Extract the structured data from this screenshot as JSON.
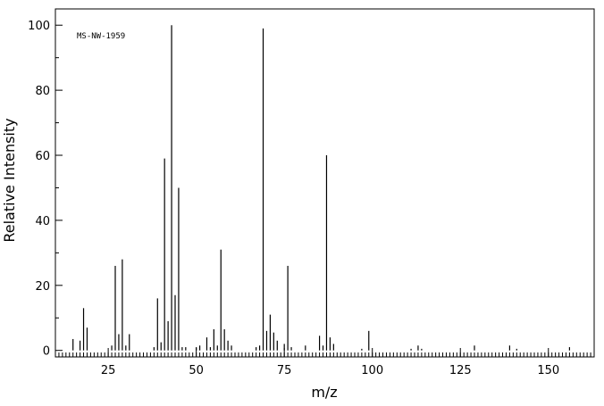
{
  "chart_data": {
    "type": "stem",
    "annotation": "MS-NW-1959",
    "xlabel": "m/z",
    "ylabel": "Relative Intensity",
    "x": [
      15,
      17,
      18,
      19,
      26,
      27,
      28,
      29,
      30,
      31,
      38,
      39,
      40,
      41,
      42,
      43,
      44,
      45,
      46,
      47,
      50,
      51,
      53,
      54,
      55,
      56,
      57,
      58,
      59,
      60,
      67,
      68,
      69,
      70,
      71,
      72,
      73,
      75,
      76,
      77,
      81,
      85,
      86,
      87,
      88,
      89,
      97,
      99,
      111,
      113,
      114,
      129,
      139,
      141,
      156
    ],
    "values": [
      3.5,
      3,
      13,
      7,
      1.5,
      26,
      5,
      28,
      1.5,
      5,
      1,
      16,
      2.5,
      59,
      9,
      100,
      17,
      50,
      1,
      1,
      1,
      1.5,
      4,
      1,
      6.5,
      1.5,
      31,
      6.5,
      3,
      1.5,
      1,
      1.5,
      99,
      6,
      11,
      5.5,
      3,
      2,
      26,
      1,
      1.5,
      4.5,
      1.5,
      60,
      4,
      2,
      0.5,
      6,
      0.5,
      1.5,
      0.5,
      1.5,
      1.5,
      0.5,
      1
    ],
    "color": "#000000",
    "xlim": [
      10,
      163
    ],
    "xticks": [
      25,
      50,
      75,
      100,
      125,
      150
    ],
    "ylim": [
      -2,
      105
    ],
    "yticks": [
      0,
      20,
      40,
      60,
      80,
      100
    ]
  }
}
